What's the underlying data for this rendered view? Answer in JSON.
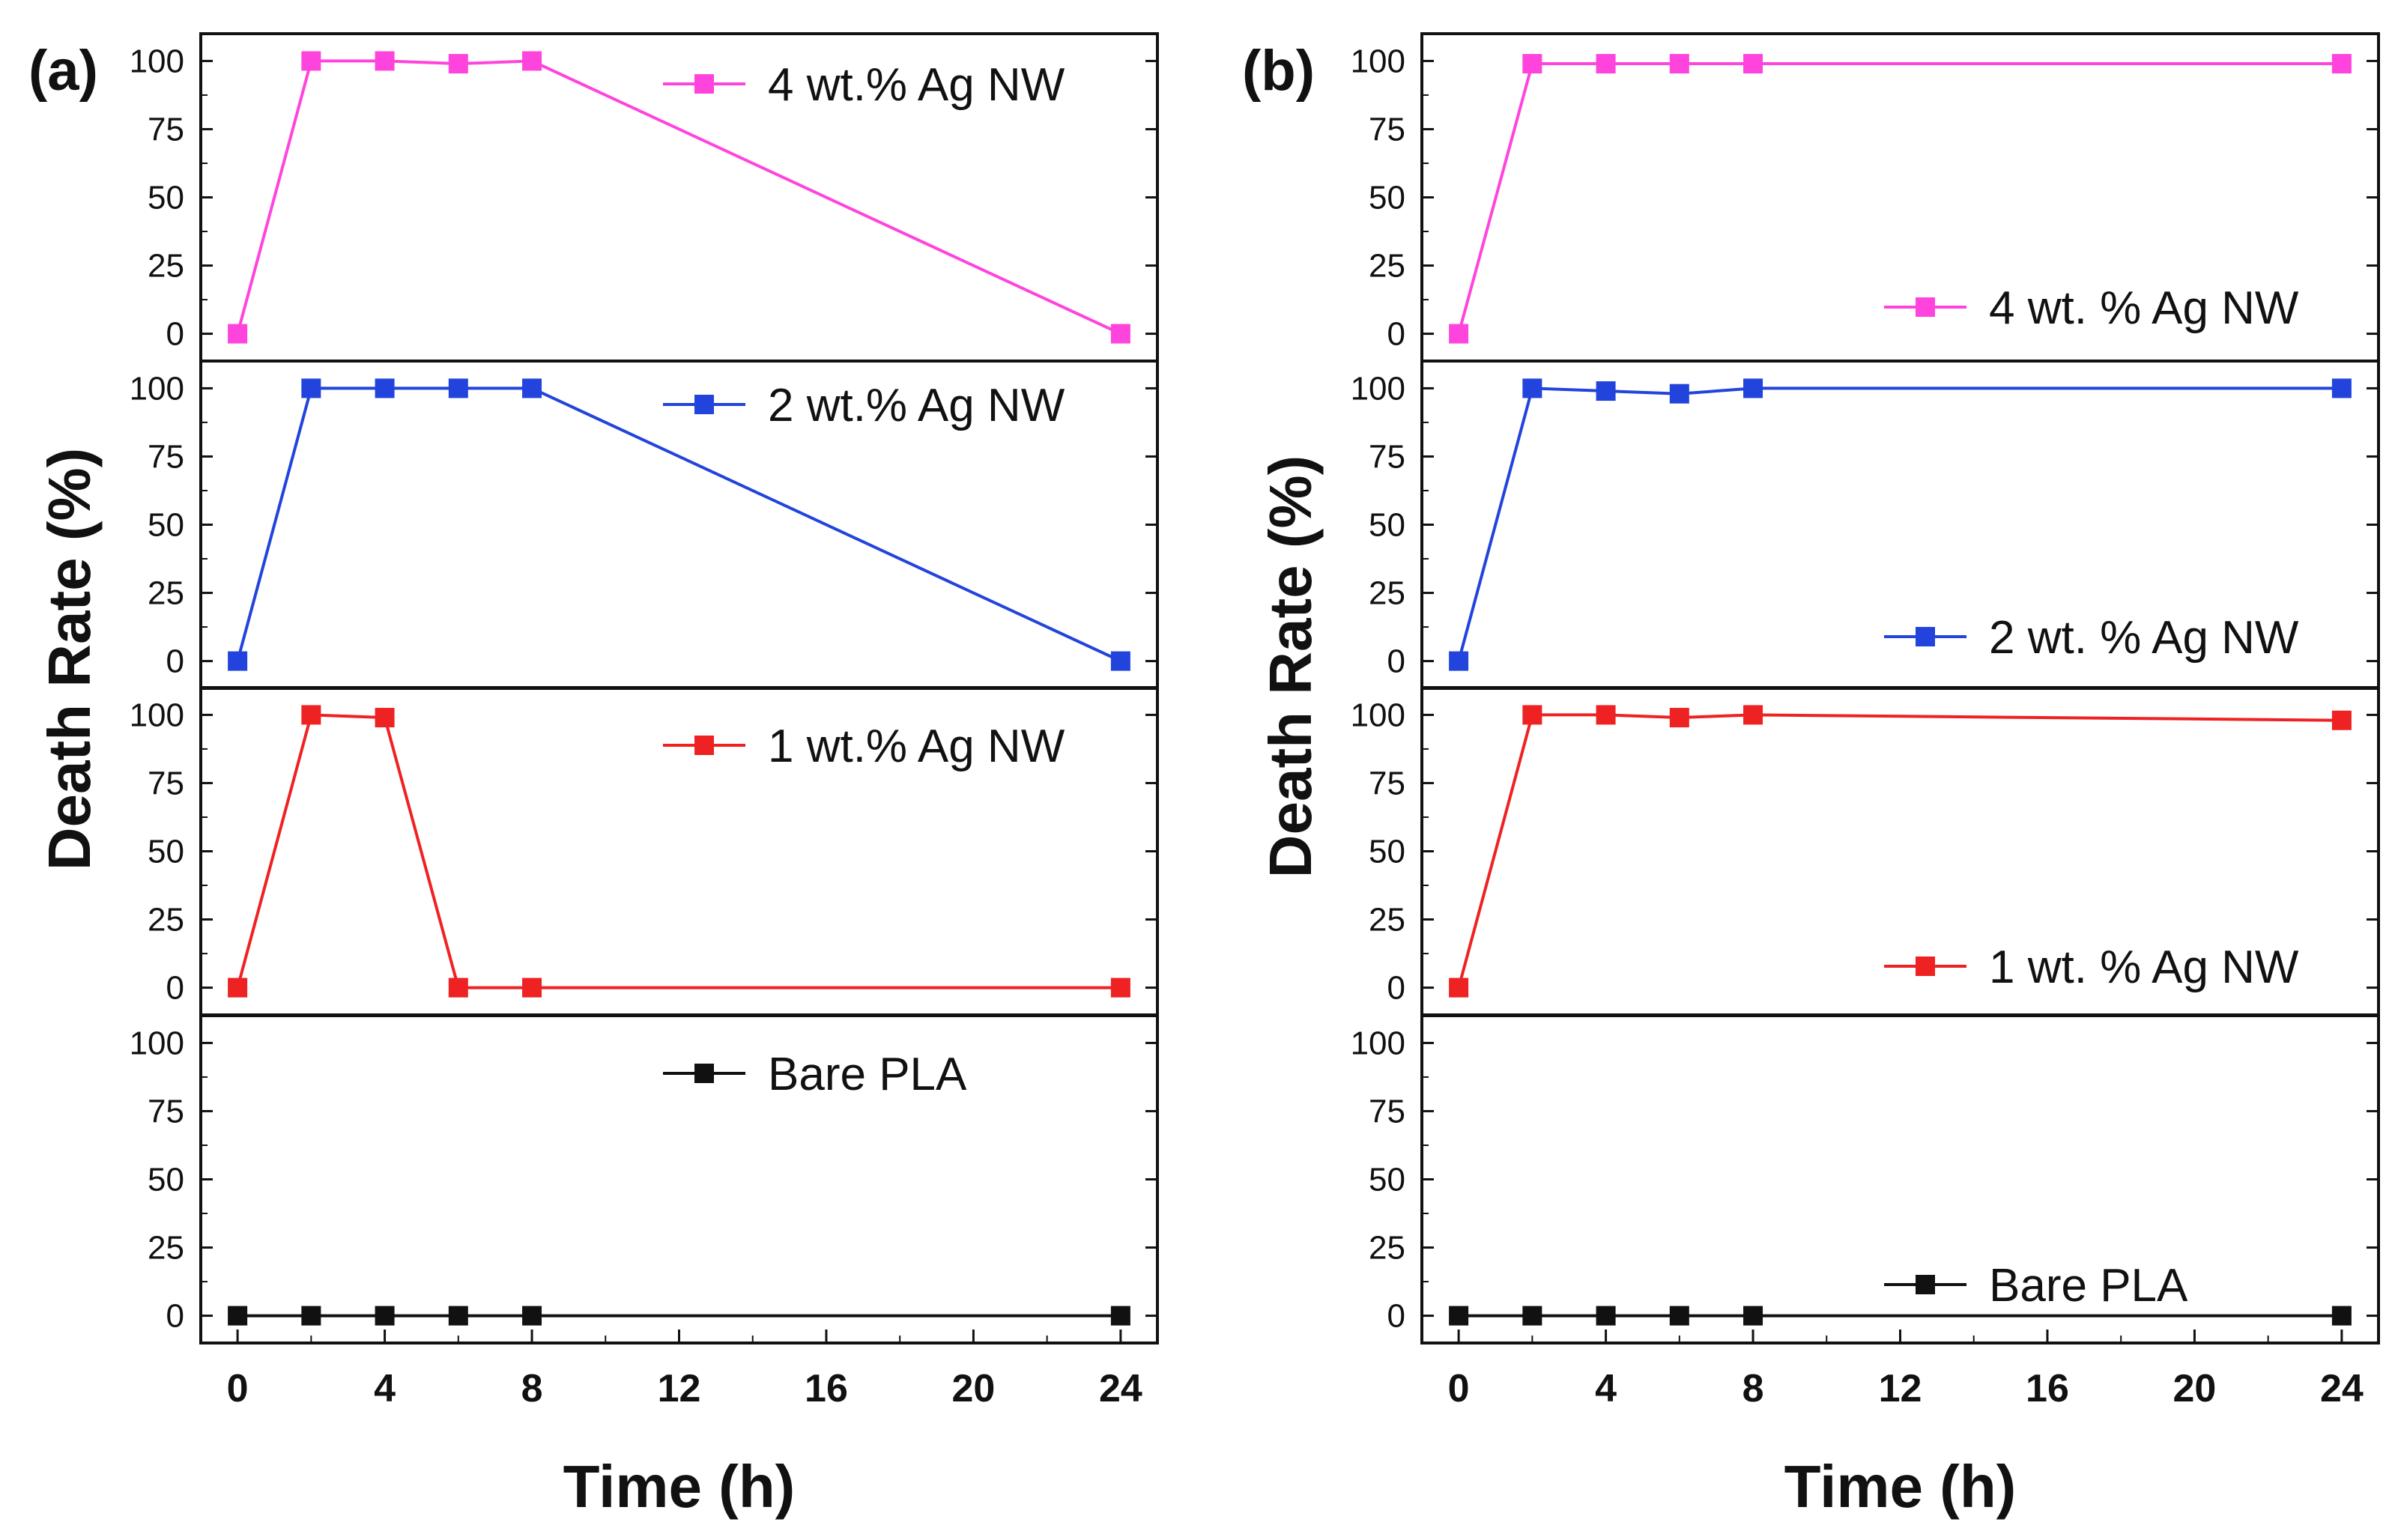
{
  "chart_data": [
    {
      "type": "line",
      "panel_label": "(a)",
      "xlabel": "Time (h)",
      "ylabel": "Death Rate (%)",
      "xlim": [
        -1,
        25
      ],
      "ylim": [
        -10,
        110
      ],
      "x_ticks": [
        0,
        4,
        8,
        12,
        16,
        20,
        24
      ],
      "x_tick_labels": [
        "0",
        "4",
        "8",
        "12",
        "16",
        "20",
        "24"
      ],
      "y_ticks": [
        0,
        25,
        50,
        75,
        100
      ],
      "y_tick_labels": [
        "0",
        "25",
        "50",
        "75",
        "100"
      ],
      "grid": false,
      "legend_position": "top-right",
      "subplots": [
        {
          "name": "4 wt.% Ag NW",
          "color": "#ff44dd",
          "x": [
            0,
            2,
            4,
            6,
            8,
            24
          ],
          "values": [
            0,
            100,
            100,
            99,
            100,
            0
          ]
        },
        {
          "name": "2 wt.% Ag NW",
          "color": "#2244dd",
          "x": [
            0,
            2,
            4,
            6,
            8,
            24
          ],
          "values": [
            0,
            100,
            100,
            100,
            100,
            0
          ]
        },
        {
          "name": "1 wt.% Ag NW",
          "color": "#ee2222",
          "x": [
            0,
            2,
            4,
            6,
            8,
            24
          ],
          "values": [
            0,
            100,
            99,
            0,
            0,
            0
          ]
        },
        {
          "name": "Bare PLA",
          "color": "#111111",
          "x": [
            0,
            2,
            4,
            6,
            8,
            24
          ],
          "values": [
            0,
            0,
            0,
            0,
            0,
            0
          ]
        }
      ]
    },
    {
      "type": "line",
      "panel_label": "(b)",
      "xlabel": "Time (h)",
      "ylabel": "Death Rate (%)",
      "xlim": [
        -1,
        25
      ],
      "ylim": [
        -10,
        110
      ],
      "x_ticks": [
        0,
        4,
        8,
        12,
        16,
        20,
        24
      ],
      "x_tick_labels": [
        "0",
        "4",
        "8",
        "12",
        "16",
        "20",
        "24"
      ],
      "y_ticks": [
        0,
        25,
        50,
        75,
        100
      ],
      "y_tick_labels": [
        "0",
        "25",
        "50",
        "75",
        "100"
      ],
      "grid": false,
      "legend_position": "bottom-right",
      "subplots": [
        {
          "name": "4 wt. % Ag NW",
          "color": "#ff44dd",
          "x": [
            0,
            2,
            4,
            6,
            8,
            24
          ],
          "values": [
            0,
            99,
            99,
            99,
            99,
            99
          ]
        },
        {
          "name": "2 wt. % Ag NW",
          "color": "#2244dd",
          "x": [
            0,
            2,
            4,
            6,
            8,
            24
          ],
          "values": [
            0,
            100,
            99,
            98,
            100,
            100
          ]
        },
        {
          "name": "1 wt. % Ag NW",
          "color": "#ee2222",
          "x": [
            0,
            2,
            4,
            6,
            8,
            24
          ],
          "values": [
            0,
            100,
            100,
            99,
            100,
            98
          ]
        },
        {
          "name": "Bare PLA",
          "color": "#111111",
          "x": [
            0,
            2,
            4,
            6,
            8,
            24
          ],
          "values": [
            0,
            0,
            0,
            0,
            0,
            0
          ]
        }
      ]
    }
  ]
}
